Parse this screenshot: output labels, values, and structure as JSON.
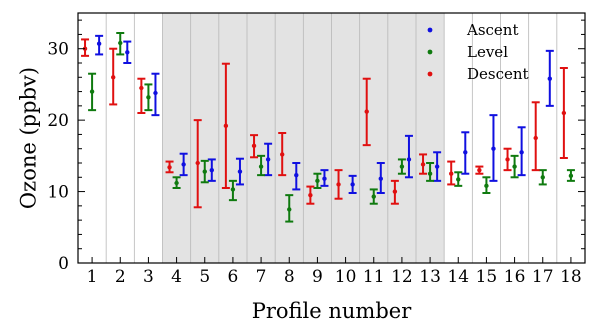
{
  "chart_data": {
    "type": "scatter",
    "xlabel": "Profile number",
    "ylabel": "Ozone (ppbv)",
    "ylim": [
      0,
      35
    ],
    "xlim": [
      0.5,
      18.5
    ],
    "x": [
      1,
      2,
      3,
      4,
      5,
      6,
      7,
      8,
      9,
      10,
      11,
      12,
      13,
      14,
      15,
      16,
      17,
      18
    ],
    "x_tick_labels": [
      "1",
      "2",
      "3",
      "4",
      "5",
      "6",
      "7",
      "8",
      "9",
      "10",
      "11",
      "12",
      "13",
      "14",
      "15",
      "16",
      "17",
      "18"
    ],
    "y_ticks": [
      0,
      10,
      20,
      30
    ],
    "y_tick_labels": [
      "0",
      "10",
      "20",
      "30"
    ],
    "y_minor_step": 2,
    "shaded_profiles": [
      4,
      5,
      6,
      7,
      8,
      9,
      10,
      11,
      12,
      13
    ],
    "grid": false,
    "legend_position": "top-right",
    "series": [
      {
        "name": "Ascent",
        "color": "#1010e0",
        "offset": 0.25,
        "points": [
          {
            "x": 1,
            "y": 30.7,
            "low": 29.2,
            "high": 31.8
          },
          {
            "x": 2,
            "y": 29.5,
            "low": 28.0,
            "high": 31.0
          },
          {
            "x": 3,
            "y": 23.8,
            "low": 20.7,
            "high": 26.5
          },
          {
            "x": 4,
            "y": 13.8,
            "low": 12.3,
            "high": 15.3
          },
          {
            "x": 5,
            "y": 13.0,
            "low": 11.5,
            "high": 14.5
          },
          {
            "x": 6,
            "y": 12.8,
            "low": 11.0,
            "high": 14.6
          },
          {
            "x": 7,
            "y": 14.5,
            "low": 12.3,
            "high": 16.7
          },
          {
            "x": 8,
            "y": 12.3,
            "low": 10.3,
            "high": 14.0
          },
          {
            "x": 9,
            "y": 11.8,
            "low": 10.8,
            "high": 13.0
          },
          {
            "x": 10,
            "y": 11.0,
            "low": 9.8,
            "high": 12.2
          },
          {
            "x": 11,
            "y": 11.8,
            "low": 9.8,
            "high": 14.0
          },
          {
            "x": 12,
            "y": 14.5,
            "low": 12.0,
            "high": 17.8
          },
          {
            "x": 13,
            "y": 13.5,
            "low": 11.5,
            "high": 15.5
          },
          {
            "x": 14,
            "y": 15.5,
            "low": 12.5,
            "high": 18.3
          },
          {
            "x": 15,
            "y": 16.0,
            "low": 11.5,
            "high": 20.7
          },
          {
            "x": 16,
            "y": 15.5,
            "low": 12.3,
            "high": 19.0
          },
          {
            "x": 17,
            "y": 25.8,
            "low": 22.0,
            "high": 29.7
          }
        ]
      },
      {
        "name": "Level",
        "color": "#0f7a0f",
        "offset": 0.0,
        "points": [
          {
            "x": 1,
            "y": 24.0,
            "low": 21.4,
            "high": 26.5
          },
          {
            "x": 2,
            "y": 30.8,
            "low": 29.2,
            "high": 32.2
          },
          {
            "x": 3,
            "y": 23.2,
            "low": 21.4,
            "high": 25.0
          },
          {
            "x": 4,
            "y": 11.2,
            "low": 10.5,
            "high": 12.0
          },
          {
            "x": 5,
            "y": 12.8,
            "low": 11.3,
            "high": 14.3
          },
          {
            "x": 6,
            "y": 10.3,
            "low": 8.8,
            "high": 11.5
          },
          {
            "x": 7,
            "y": 13.5,
            "low": 12.3,
            "high": 15.0
          },
          {
            "x": 8,
            "y": 7.5,
            "low": 5.8,
            "high": 9.5
          },
          {
            "x": 9,
            "y": 11.5,
            "low": 10.5,
            "high": 12.5
          },
          {
            "x": 11,
            "y": 9.3,
            "low": 8.3,
            "high": 10.3
          },
          {
            "x": 12,
            "y": 13.5,
            "low": 12.5,
            "high": 14.5
          },
          {
            "x": 13,
            "y": 12.5,
            "low": 11.5,
            "high": 14.0
          },
          {
            "x": 14,
            "y": 11.7,
            "low": 10.8,
            "high": 12.7
          },
          {
            "x": 15,
            "y": 10.8,
            "low": 9.8,
            "high": 12.0
          },
          {
            "x": 16,
            "y": 13.5,
            "low": 12.0,
            "high": 15.0
          },
          {
            "x": 17,
            "y": 12.0,
            "low": 11.0,
            "high": 13.0
          },
          {
            "x": 18,
            "y": 12.2,
            "low": 11.5,
            "high": 13.0
          }
        ]
      },
      {
        "name": "Descent",
        "color": "#e01010",
        "offset": -0.25,
        "points": [
          {
            "x": 1,
            "y": 30.0,
            "low": 29.0,
            "high": 31.3
          },
          {
            "x": 2,
            "y": 26.0,
            "low": 22.2,
            "high": 30.0
          },
          {
            "x": 3,
            "y": 24.5,
            "low": 21.0,
            "high": 25.8
          },
          {
            "x": 4,
            "y": 13.4,
            "low": 12.7,
            "high": 14.2
          },
          {
            "x": 5,
            "y": 14.0,
            "low": 7.8,
            "high": 20.0
          },
          {
            "x": 6,
            "y": 19.2,
            "low": 10.5,
            "high": 27.9
          },
          {
            "x": 7,
            "y": 16.4,
            "low": 14.8,
            "high": 17.9
          },
          {
            "x": 8,
            "y": 15.2,
            "low": 12.3,
            "high": 18.2
          },
          {
            "x": 9,
            "y": 9.5,
            "low": 8.3,
            "high": 10.7
          },
          {
            "x": 10,
            "y": 11.0,
            "low": 9.0,
            "high": 13.0
          },
          {
            "x": 11,
            "y": 21.2,
            "low": 16.5,
            "high": 25.8
          },
          {
            "x": 12,
            "y": 10.0,
            "low": 8.3,
            "high": 11.5
          },
          {
            "x": 13,
            "y": 13.8,
            "low": 12.5,
            "high": 15.2
          },
          {
            "x": 14,
            "y": 12.5,
            "low": 11.0,
            "high": 14.2
          },
          {
            "x": 15,
            "y": 13.0,
            "low": 12.5,
            "high": 13.5
          },
          {
            "x": 16,
            "y": 14.5,
            "low": 13.0,
            "high": 16.0
          },
          {
            "x": 17,
            "y": 17.5,
            "low": 13.0,
            "high": 22.5
          },
          {
            "x": 18,
            "y": 21.0,
            "low": 14.7,
            "high": 27.3
          }
        ]
      }
    ]
  }
}
